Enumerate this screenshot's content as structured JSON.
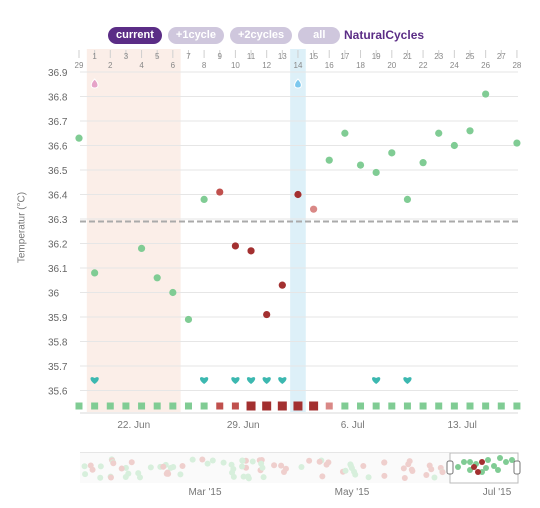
{
  "range_buttons": {
    "current": "current",
    "plus1": "+1cycle",
    "plus2": "+2cycles",
    "all": "all",
    "active": "current"
  },
  "brand": "NaturalCycles",
  "colors": {
    "fertile_band": "#fbeee8",
    "ovulation_band": "#ddf0f8",
    "cover_line": "#aaaaaa",
    "green": "#80cc94",
    "red_light": "#d98886",
    "red": "#c0504d",
    "red_dark": "#a33030",
    "heart": "#3cb8b0",
    "grid": "#e6e6e6",
    "navigator_handle": "#777777"
  },
  "chart_data": {
    "type": "scatter",
    "title": "",
    "ylabel": "Temperatur (°C)",
    "ylim": [
      35.55,
      36.95
    ],
    "y_ticks": [
      "36.9",
      "36.8",
      "36.7",
      "36.6",
      "36.5",
      "36.4",
      "36.3",
      "36.2",
      "36.1",
      "36",
      "35.9",
      "35.8",
      "35.7",
      "35.6"
    ],
    "cover_line": 36.29,
    "x_start_label": "29",
    "cycle_day_labels": [
      "1",
      "2",
      "3",
      "4",
      "5",
      "6",
      "7",
      "8",
      "9",
      "10",
      "11",
      "12",
      "13",
      "14",
      "15",
      "16",
      "17",
      "18",
      "19",
      "20",
      "21",
      "22",
      "23",
      "24",
      "25",
      "26",
      "27",
      "28"
    ],
    "date_labels": [
      "22. Jun",
      "29. Jun",
      "6. Jul",
      "13. Jul"
    ],
    "date_label_days": [
      3.5,
      10.5,
      17.5,
      24.5
    ],
    "fertile_window_days": [
      1,
      6
    ],
    "ovulation_day": 14,
    "temperatures": [
      {
        "day": 0,
        "temp": 36.63,
        "status": "green"
      },
      {
        "day": 1,
        "temp": 36.08,
        "status": "green"
      },
      {
        "day": 4,
        "temp": 36.18,
        "status": "green"
      },
      {
        "day": 5,
        "temp": 36.06,
        "status": "green"
      },
      {
        "day": 6,
        "temp": 36.0,
        "status": "green"
      },
      {
        "day": 7,
        "temp": 35.89,
        "status": "green"
      },
      {
        "day": 8,
        "temp": 36.38,
        "status": "green"
      },
      {
        "day": 9,
        "temp": 36.41,
        "status": "red"
      },
      {
        "day": 10,
        "temp": 36.19,
        "status": "red_dark"
      },
      {
        "day": 11,
        "temp": 36.17,
        "status": "red_dark"
      },
      {
        "day": 12,
        "temp": 35.91,
        "status": "red_dark"
      },
      {
        "day": 13,
        "temp": 36.03,
        "status": "red_dark"
      },
      {
        "day": 14,
        "temp": 36.4,
        "status": "red_dark"
      },
      {
        "day": 15,
        "temp": 36.34,
        "status": "red_light"
      },
      {
        "day": 16,
        "temp": 36.54,
        "status": "green"
      },
      {
        "day": 17,
        "temp": 36.65,
        "status": "green"
      },
      {
        "day": 18,
        "temp": 36.52,
        "status": "green"
      },
      {
        "day": 19,
        "temp": 36.49,
        "status": "green"
      },
      {
        "day": 20,
        "temp": 36.57,
        "status": "green"
      },
      {
        "day": 21,
        "temp": 36.38,
        "status": "green"
      },
      {
        "day": 22,
        "temp": 36.53,
        "status": "green"
      },
      {
        "day": 23,
        "temp": 36.65,
        "status": "green"
      },
      {
        "day": 24,
        "temp": 36.6,
        "status": "green"
      },
      {
        "day": 25,
        "temp": 36.66,
        "status": "green"
      },
      {
        "day": 26,
        "temp": 36.81,
        "status": "green"
      },
      {
        "day": 28,
        "temp": 36.61,
        "status": "green"
      }
    ],
    "heart_days": [
      1,
      8,
      10,
      11,
      12,
      13,
      19,
      21
    ],
    "drops": [
      {
        "day": 1,
        "color": "#e6a3c8"
      },
      {
        "day": 14,
        "color": "#7cc8ee"
      }
    ],
    "day_squares": [
      "green",
      "green",
      "green",
      "green",
      "green",
      "green",
      "green",
      "green",
      "green",
      "red",
      "red",
      "red_dark",
      "red_dark",
      "red_dark",
      "red_dark",
      "red_dark",
      "red_light",
      "green",
      "green",
      "green",
      "green",
      "green",
      "green",
      "green",
      "green",
      "green",
      "green",
      "green",
      "green"
    ],
    "navigator": {
      "labels": [
        "Mar '15",
        "May '15",
        "Jul '15"
      ]
    }
  }
}
